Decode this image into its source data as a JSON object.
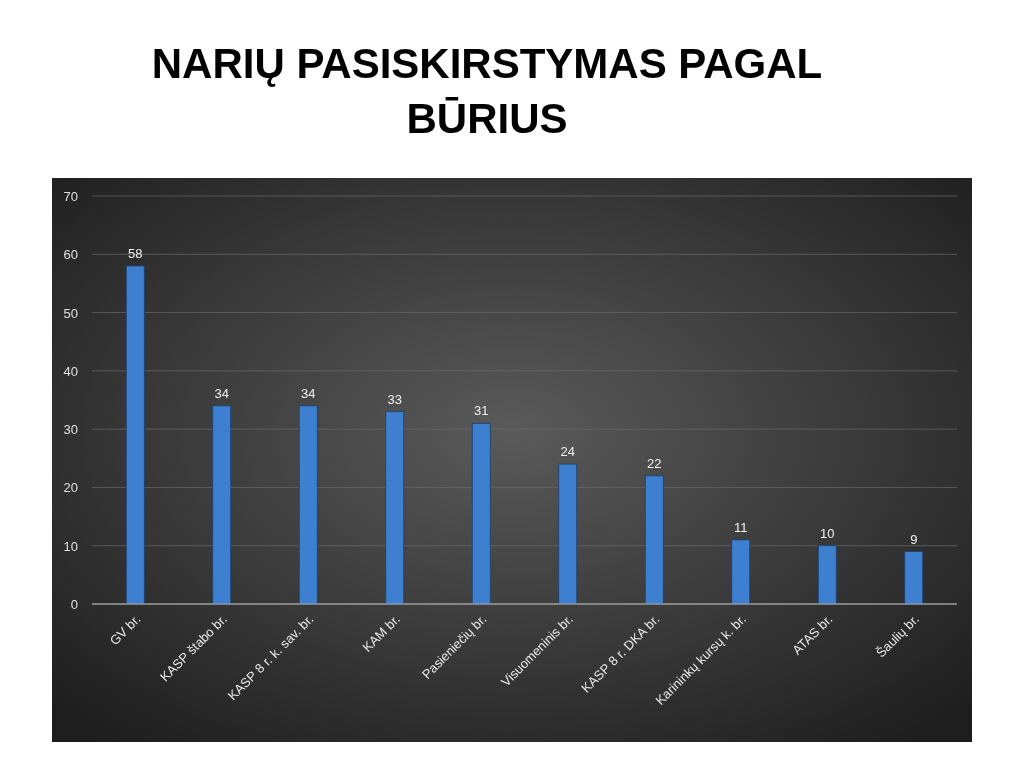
{
  "chart_data": {
    "type": "bar",
    "title": "NARIŲ PASISKIRSTYMAS PAGAL BŪRIUS",
    "categories": [
      "GV br.",
      "KASP štabo br.",
      "KASP 8 r. k. sav. br.",
      "KAM br.",
      "Pasieniečių br.",
      "Visuomeninis br.",
      "KASP 8 r. DKA br.",
      "Karininkų kursų k. br.",
      "ATAS br.",
      "Šaulių br."
    ],
    "values": [
      58,
      34,
      34,
      33,
      31,
      24,
      22,
      11,
      10,
      9
    ],
    "color": "#3f7fd0",
    "ylim": [
      0,
      70
    ],
    "yticks": [
      0,
      10,
      20,
      30,
      40,
      50,
      60,
      70
    ],
    "grid": "y",
    "data_labels": true
  }
}
